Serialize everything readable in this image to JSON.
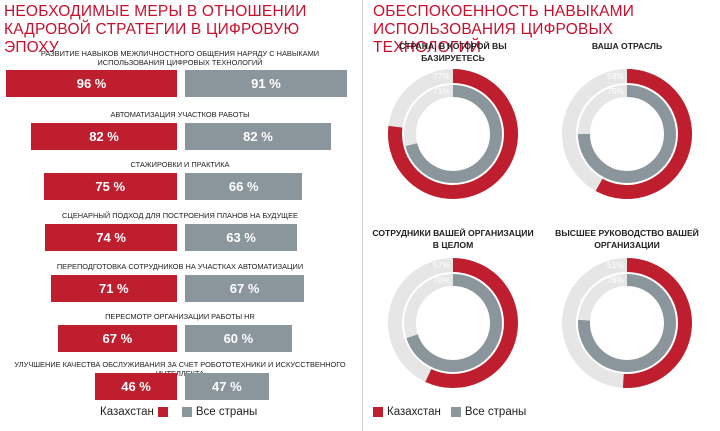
{
  "left_panel": {
    "title_line1": "НЕОБХОДИМЫЕ МЕРЫ В ОТНОШЕНИИ",
    "title_line2": "КАДРОВОЙ СТРАТЕГИИ В ЦИФРОВУЮ ЭПОХУ"
  },
  "right_panel": {
    "title_line1": "ОБЕСПОКОЕННОСТЬ НАВЫКАМИ",
    "title_line2": "ИСПОЛЬЗОВАНИЯ ЦИФРОВЫХ ТЕХНОЛОГИЙ"
  },
  "legend": {
    "kazakhstan": "Казахстан",
    "all_countries": "Все страны"
  },
  "colors": {
    "kazakhstan": "#be1e2d",
    "all_countries": "#8a959c",
    "ring_track": "#e6e6e6",
    "title": "#c8102e"
  },
  "chart_data": [
    {
      "type": "bar",
      "title": "НЕОБХОДИМЫЕ МЕРЫ В ОТНОШЕНИИ КАДРОВОЙ СТРАТЕГИИ В ЦИФРОВУЮ ЭПОХУ",
      "series_names": [
        "Казахстан",
        "Все страны"
      ],
      "categories": [
        {
          "label": "РАЗВИТИЕ НАВЫКОВ МЕЖЛИЧНОСТНОГО ОБЩЕНИЯ НАРЯДУ С НАВЫКАМИ ИСПОЛЬЗОВАНИЯ ЦИФРОВЫХ ТЕХНОЛОГИЙ",
          "kz": 96,
          "all": 91,
          "kz_label": "96 %",
          "all_label": "91 %"
        },
        {
          "label": "АВТОМАТИЗАЦИЯ УЧАСТКОВ РАБОТЫ",
          "kz": 82,
          "all": 82,
          "kz_label": "82 %",
          "all_label": "82 %"
        },
        {
          "label": "СТАЖИРОВКИ И ПРАКТИКА",
          "kz": 75,
          "all": 66,
          "kz_label": "75 %",
          "all_label": "66 %"
        },
        {
          "label": "СЦЕНАРНЫЙ ПОДХОД ДЛЯ ПОСТРОЕНИЯ ПЛАНОВ НА БУДУЩЕЕ",
          "kz": 74,
          "all": 63,
          "kz_label": "74 %",
          "all_label": "63 %"
        },
        {
          "label": "ПЕРЕПОДГОТОВКА СОТРУДНИКОВ НА УЧАСТКАХ АВТОМАТИЗАЦИИ",
          "kz": 71,
          "all": 67,
          "kz_label": "71 %",
          "all_label": "67 %"
        },
        {
          "label": "ПЕРЕСМОТР ОРГАНИЗАЦИИ РАБОТЫ HR",
          "kz": 67,
          "all": 60,
          "kz_label": "67 %",
          "all_label": "60 %"
        },
        {
          "label": "УЛУЧШЕНИЕ КАЧЕСТВА ОБСЛУЖИВАНИЯ ЗА СЧЕТ РОБОТОТЕХНИКИ И ИСКУССТВЕННОГО ИНТЕЛЛЕКТА",
          "kz": 46,
          "all": 47,
          "kz_label": "46 %",
          "all_label": "47 %"
        }
      ],
      "legend": "bottom"
    },
    {
      "type": "pie",
      "variant": "concentric-donut",
      "title": "ОБЕСПОКОЕННОСТЬ НАВЫКАМИ ИСПОЛЬЗОВАНИЯ ЦИФРОВЫХ ТЕХНОЛОГИЙ",
      "series_names": [
        "Казахстан",
        "Все страны"
      ],
      "charts": [
        {
          "title_line1": "СТРАНА, В КОТОРОЙ ВЫ БАЗИРУЕТЕСЬ",
          "title_line2": "",
          "kz": 77,
          "all": 71,
          "kz_label": "77%",
          "all_label": "71%"
        },
        {
          "title_line1": "ВАША ОТРАСЛЬ",
          "title_line2": "",
          "kz": 58,
          "all": 75,
          "kz_label": "58%",
          "all_label": "75%"
        },
        {
          "title_line1": "СОТРУДНИКИ ВАШЕЙ ОРГАНИЗАЦИИ",
          "title_line2": "В ЦЕЛОМ",
          "kz": 57,
          "all": 70,
          "kz_label": "57%",
          "all_label": "70%"
        },
        {
          "title_line1": "ВЫСШЕЕ РУКОВОДСТВО ВАШЕЙ",
          "title_line2": "ОРГАНИЗАЦИИ",
          "kz": 51,
          "all": 76,
          "kz_label": "51%",
          "all_label": "76%"
        }
      ],
      "legend": "bottom"
    }
  ]
}
